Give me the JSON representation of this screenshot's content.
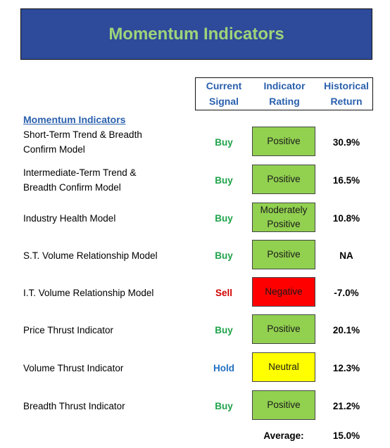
{
  "title": "Momentum Indicators",
  "headers": {
    "signal": [
      "Current",
      "Signal"
    ],
    "rating": [
      "Indicator",
      "Rating"
    ],
    "return": [
      "Historical",
      "Return"
    ]
  },
  "section_label": "Momentum Indicators",
  "rows": [
    {
      "name": [
        "Short-Term Trend & Breadth",
        "Confirm Model"
      ],
      "signal": "Buy",
      "rating": [
        "Positive"
      ],
      "ret": "30.9%"
    },
    {
      "name": [
        "Intermediate-Term Trend &",
        "Breadth Confirm Model"
      ],
      "signal": "Buy",
      "rating": [
        "Positive"
      ],
      "ret": "16.5%"
    },
    {
      "name": [
        "Industry Health Model"
      ],
      "signal": "Buy",
      "rating": [
        "Moderately",
        "Positive"
      ],
      "ret": "10.8%"
    },
    {
      "name": [
        "S.T. Volume Relationship Model"
      ],
      "signal": "Buy",
      "rating": [
        "Positive"
      ],
      "ret": "NA"
    },
    {
      "name": [
        "I.T. Volume Relationship Model"
      ],
      "signal": "Sell",
      "rating": [
        "Negative"
      ],
      "ret": "-7.0%"
    },
    {
      "name": [
        "Price Thrust Indicator"
      ],
      "signal": "Buy",
      "rating": [
        "Positive"
      ],
      "ret": "20.1%"
    },
    {
      "name": [
        "Volume Thrust Indicator"
      ],
      "signal": "Hold",
      "rating": [
        "Neutral"
      ],
      "ret": "12.3%"
    },
    {
      "name": [
        "Breadth Thrust Indicator"
      ],
      "signal": "Buy",
      "rating": [
        "Positive"
      ],
      "ret": "21.2%"
    }
  ],
  "average": {
    "label": "Average:",
    "value": "15.0%"
  },
  "colors": {
    "title_bg": "#2e4a9a",
    "title_text": "#9fd37a",
    "header_text": "#2a60ad",
    "buy": "#1fa34a",
    "sell": "#d10000",
    "hold": "#1f6fc0",
    "positive_bg": "#92d050",
    "negative_bg": "#ff0000",
    "neutral_bg": "#ffff00"
  }
}
